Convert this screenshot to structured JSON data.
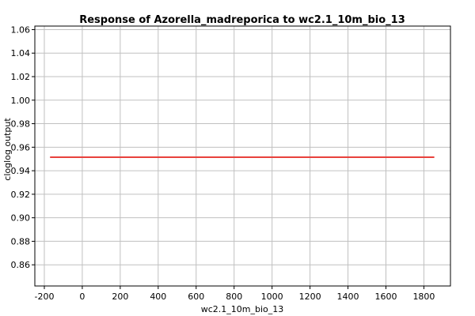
{
  "chart_data": {
    "type": "line",
    "title": "Response of Azorella_madreporica to wc2.1_10m_bio_13",
    "xlabel": "wc2.1_10m_bio_13",
    "ylabel": "cloglog output",
    "xlim": [
      -250,
      1940
    ],
    "ylim": [
      0.842,
      1.063
    ],
    "x_ticks": [
      -200,
      0,
      200,
      400,
      600,
      800,
      1000,
      1200,
      1400,
      1600,
      1800
    ],
    "x_tick_labels": [
      "-200",
      "0",
      "200",
      "400",
      "600",
      "800",
      "1000",
      "1200",
      "1400",
      "1600",
      "1800"
    ],
    "y_ticks": [
      0.86,
      0.88,
      0.9,
      0.92,
      0.94,
      0.96,
      0.98,
      1.0,
      1.02,
      1.04,
      1.06
    ],
    "y_tick_labels": [
      "0.86",
      "0.88",
      "0.90",
      "0.92",
      "0.94",
      "0.96",
      "0.98",
      "1.00",
      "1.02",
      "1.04",
      "1.06"
    ],
    "grid": true,
    "series": [
      {
        "color": "#e8413c",
        "x": [
          -170,
          1855
        ],
        "y": [
          0.9515,
          0.9515
        ]
      }
    ]
  }
}
